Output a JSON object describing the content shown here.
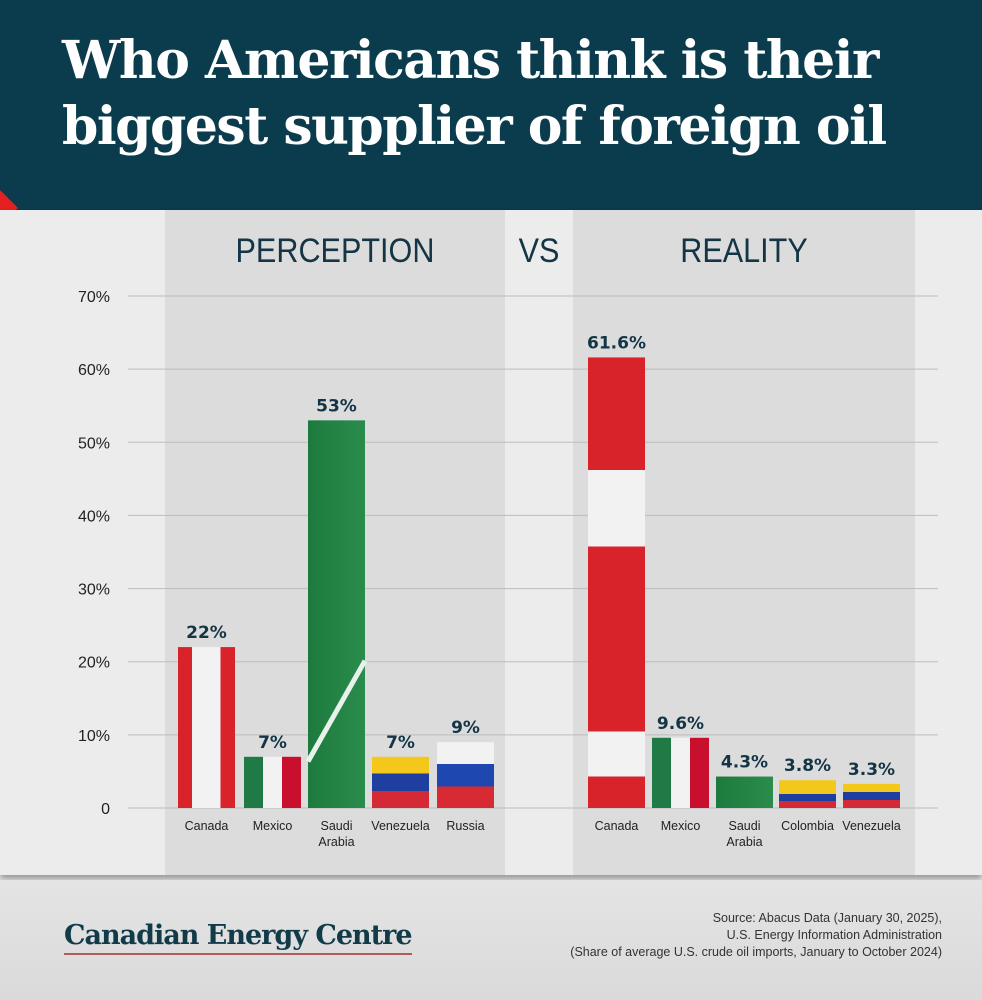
{
  "title": "Who Americans think is their biggest supplier of foreign oil",
  "chart_data": [
    {
      "type": "bar",
      "title": "PERCEPTION",
      "categories": [
        "Canada",
        "Mexico",
        "Saudi Arabia",
        "Venezuela",
        "Russia"
      ],
      "values": [
        22,
        7,
        53,
        7,
        9
      ],
      "labels": [
        "22%",
        "7%",
        "53%",
        "7%",
        "9%"
      ],
      "ylim": [
        0,
        70
      ],
      "yticks": [
        "0",
        "10%",
        "20%",
        "30%",
        "40%",
        "50%",
        "60%",
        "70%"
      ],
      "grid": true
    },
    {
      "type": "bar",
      "title": "REALITY",
      "categories": [
        "Canada",
        "Mexico",
        "Saudi Arabia",
        "Colombia",
        "Venezuela"
      ],
      "values": [
        61.6,
        9.6,
        4.3,
        3.8,
        3.3
      ],
      "labels": [
        "61.6%",
        "9.6%",
        "4.3%",
        "3.8%",
        "3.3%"
      ],
      "ylim": [
        0,
        70
      ],
      "grid": true
    }
  ],
  "vs_label": "VS",
  "bar_fill": "country flags",
  "colors": {
    "header": "#0b3c4d",
    "text": "#143545",
    "accent": "#e52020"
  },
  "footer": {
    "logo": "Canadian Energy Centre",
    "source": [
      "Source: Abacus Data (January 30, 2025),",
      "U.S. Energy Information Administration",
      "(Share of average U.S. crude oil imports, January to October 2024)"
    ]
  }
}
